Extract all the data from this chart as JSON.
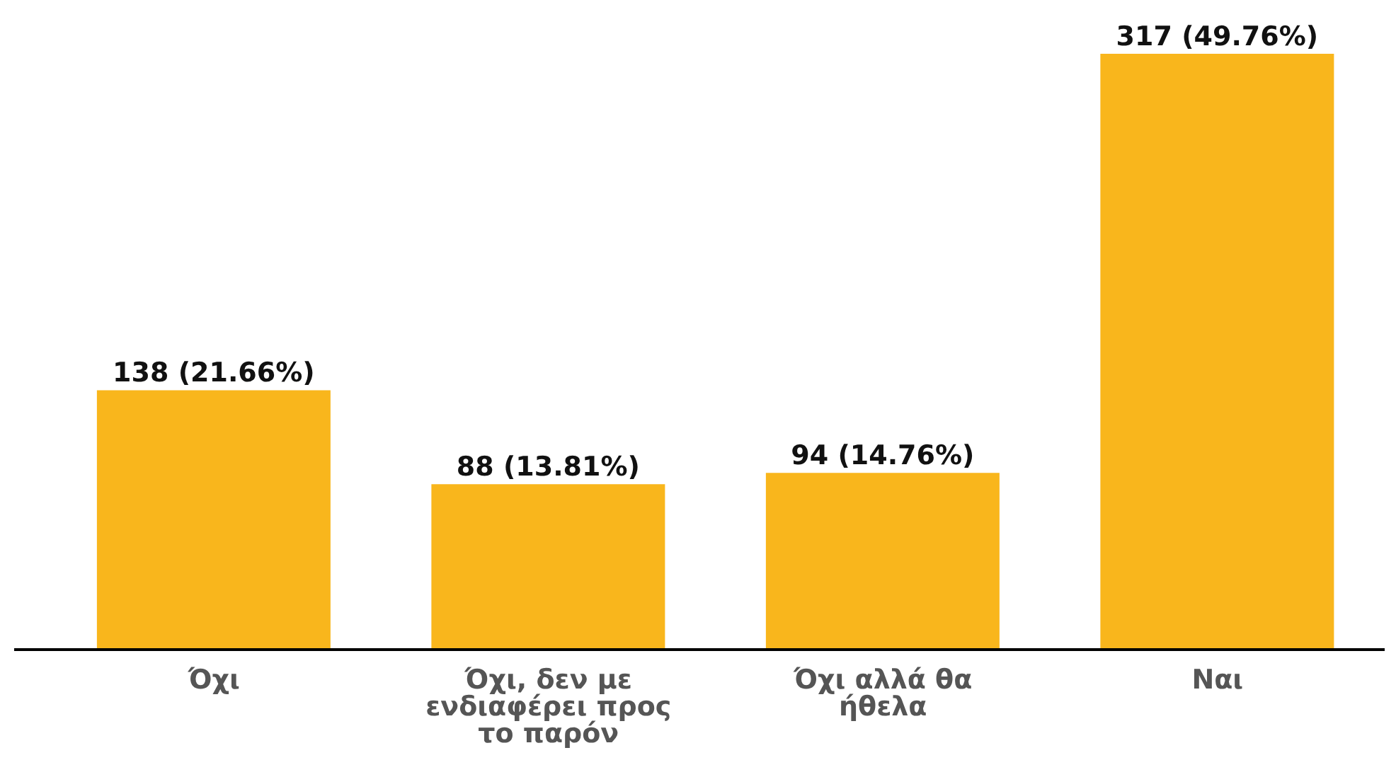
{
  "chart_data": {
    "type": "bar",
    "categories": [
      "Όχι",
      "Όχι, δεν με ενδιαφέρει προς το παρόν",
      "Όχι αλλά θα ήθελα",
      "Ναι"
    ],
    "values": [
      138,
      88,
      94,
      317
    ],
    "color": "#f9b61c",
    "value_labels": [
      "138 (21.66%)",
      "88 (13.81%)",
      "94 (14.76%)",
      "317 (49.76%)"
    ]
  }
}
